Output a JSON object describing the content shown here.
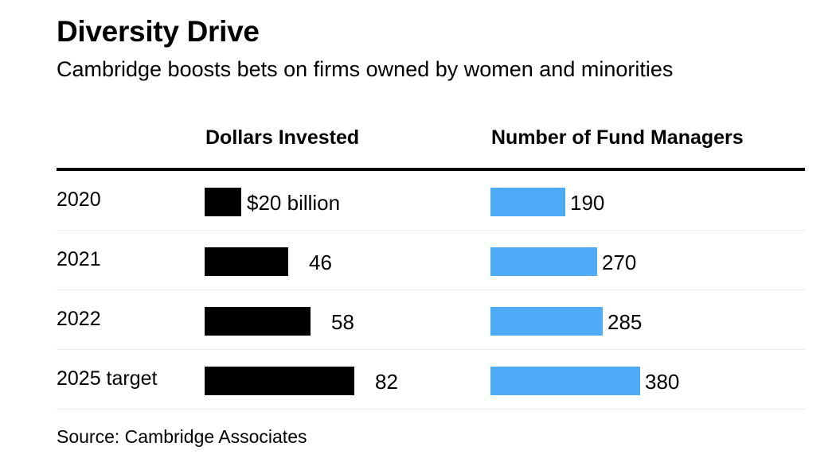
{
  "header": {
    "title": "Diversity Drive",
    "subtitle": "Cambridge boosts bets on firms owned by women and minorities"
  },
  "columns": {
    "dollars": "Dollars Invested",
    "managers": "Number of Fund Managers"
  },
  "source": "Source: Cambridge Associates",
  "colors": {
    "dollars": "#000000",
    "managers": "#4dabf7"
  },
  "chart_data": {
    "type": "bar",
    "categories": [
      "2020",
      "2021",
      "2022",
      "2025 target"
    ],
    "series": [
      {
        "name": "Dollars Invested",
        "values": [
          20,
          46,
          58,
          82
        ],
        "labels": [
          "$20 billion",
          "46",
          "58",
          "82"
        ]
      },
      {
        "name": "Number of Fund Managers",
        "values": [
          190,
          270,
          285,
          380
        ],
        "labels": [
          "190",
          "270",
          "285",
          "380"
        ]
      }
    ]
  }
}
